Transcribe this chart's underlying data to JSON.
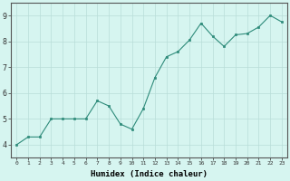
{
  "x": [
    0,
    1,
    2,
    3,
    4,
    5,
    6,
    7,
    8,
    9,
    10,
    11,
    12,
    13,
    14,
    15,
    16,
    17,
    18,
    19,
    20,
    21,
    22,
    23
  ],
  "y": [
    4.0,
    4.3,
    4.3,
    5.0,
    5.0,
    5.0,
    5.0,
    5.7,
    5.5,
    4.8,
    4.6,
    5.4,
    6.6,
    7.4,
    7.6,
    8.05,
    8.7,
    8.2,
    7.8,
    8.25,
    8.3,
    8.55,
    9.0,
    8.75
  ],
  "xlabel": "Humidex (Indice chaleur)",
  "xlim": [
    -0.5,
    23.5
  ],
  "ylim": [
    3.5,
    9.5
  ],
  "yticks": [
    4,
    5,
    6,
    7,
    8,
    9
  ],
  "xtick_labels": [
    "0",
    "1",
    "2",
    "3",
    "4",
    "5",
    "6",
    "7",
    "8",
    "9",
    "10",
    "11",
    "12",
    "13",
    "14",
    "15",
    "16",
    "17",
    "18",
    "19",
    "20",
    "21",
    "22",
    "23"
  ],
  "line_color": "#2e8b7a",
  "marker_color": "#2e8b7a",
  "bg_color": "#d6f5f0",
  "grid_color": "#b8ddd8",
  "axis_color": "#555555"
}
